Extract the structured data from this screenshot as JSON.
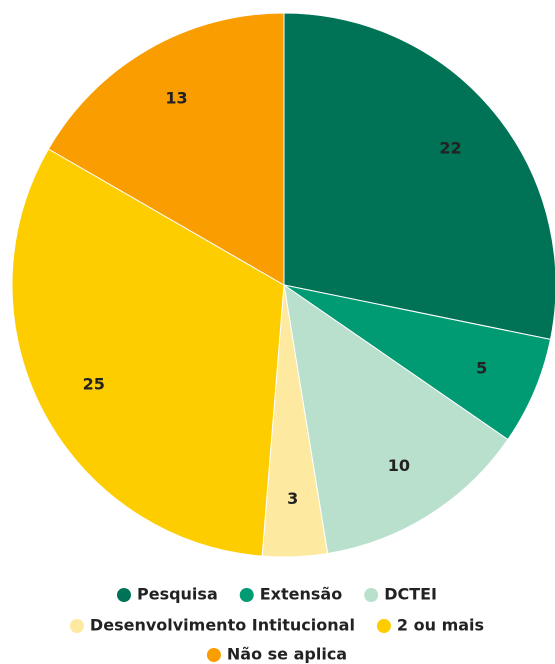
{
  "chart_data": {
    "type": "pie",
    "categories": [
      "Pesquisa",
      "Extensão",
      "DCTEI",
      "Desenvolvimento Intitucional",
      "2 ou mais",
      "Não se aplica"
    ],
    "values": [
      22,
      5,
      10,
      3,
      25,
      13
    ],
    "colors": [
      "#007256",
      "#009a73",
      "#b8e0cc",
      "#fde9a0",
      "#fdcd00",
      "#f99d00"
    ],
    "legend": "bottom"
  }
}
